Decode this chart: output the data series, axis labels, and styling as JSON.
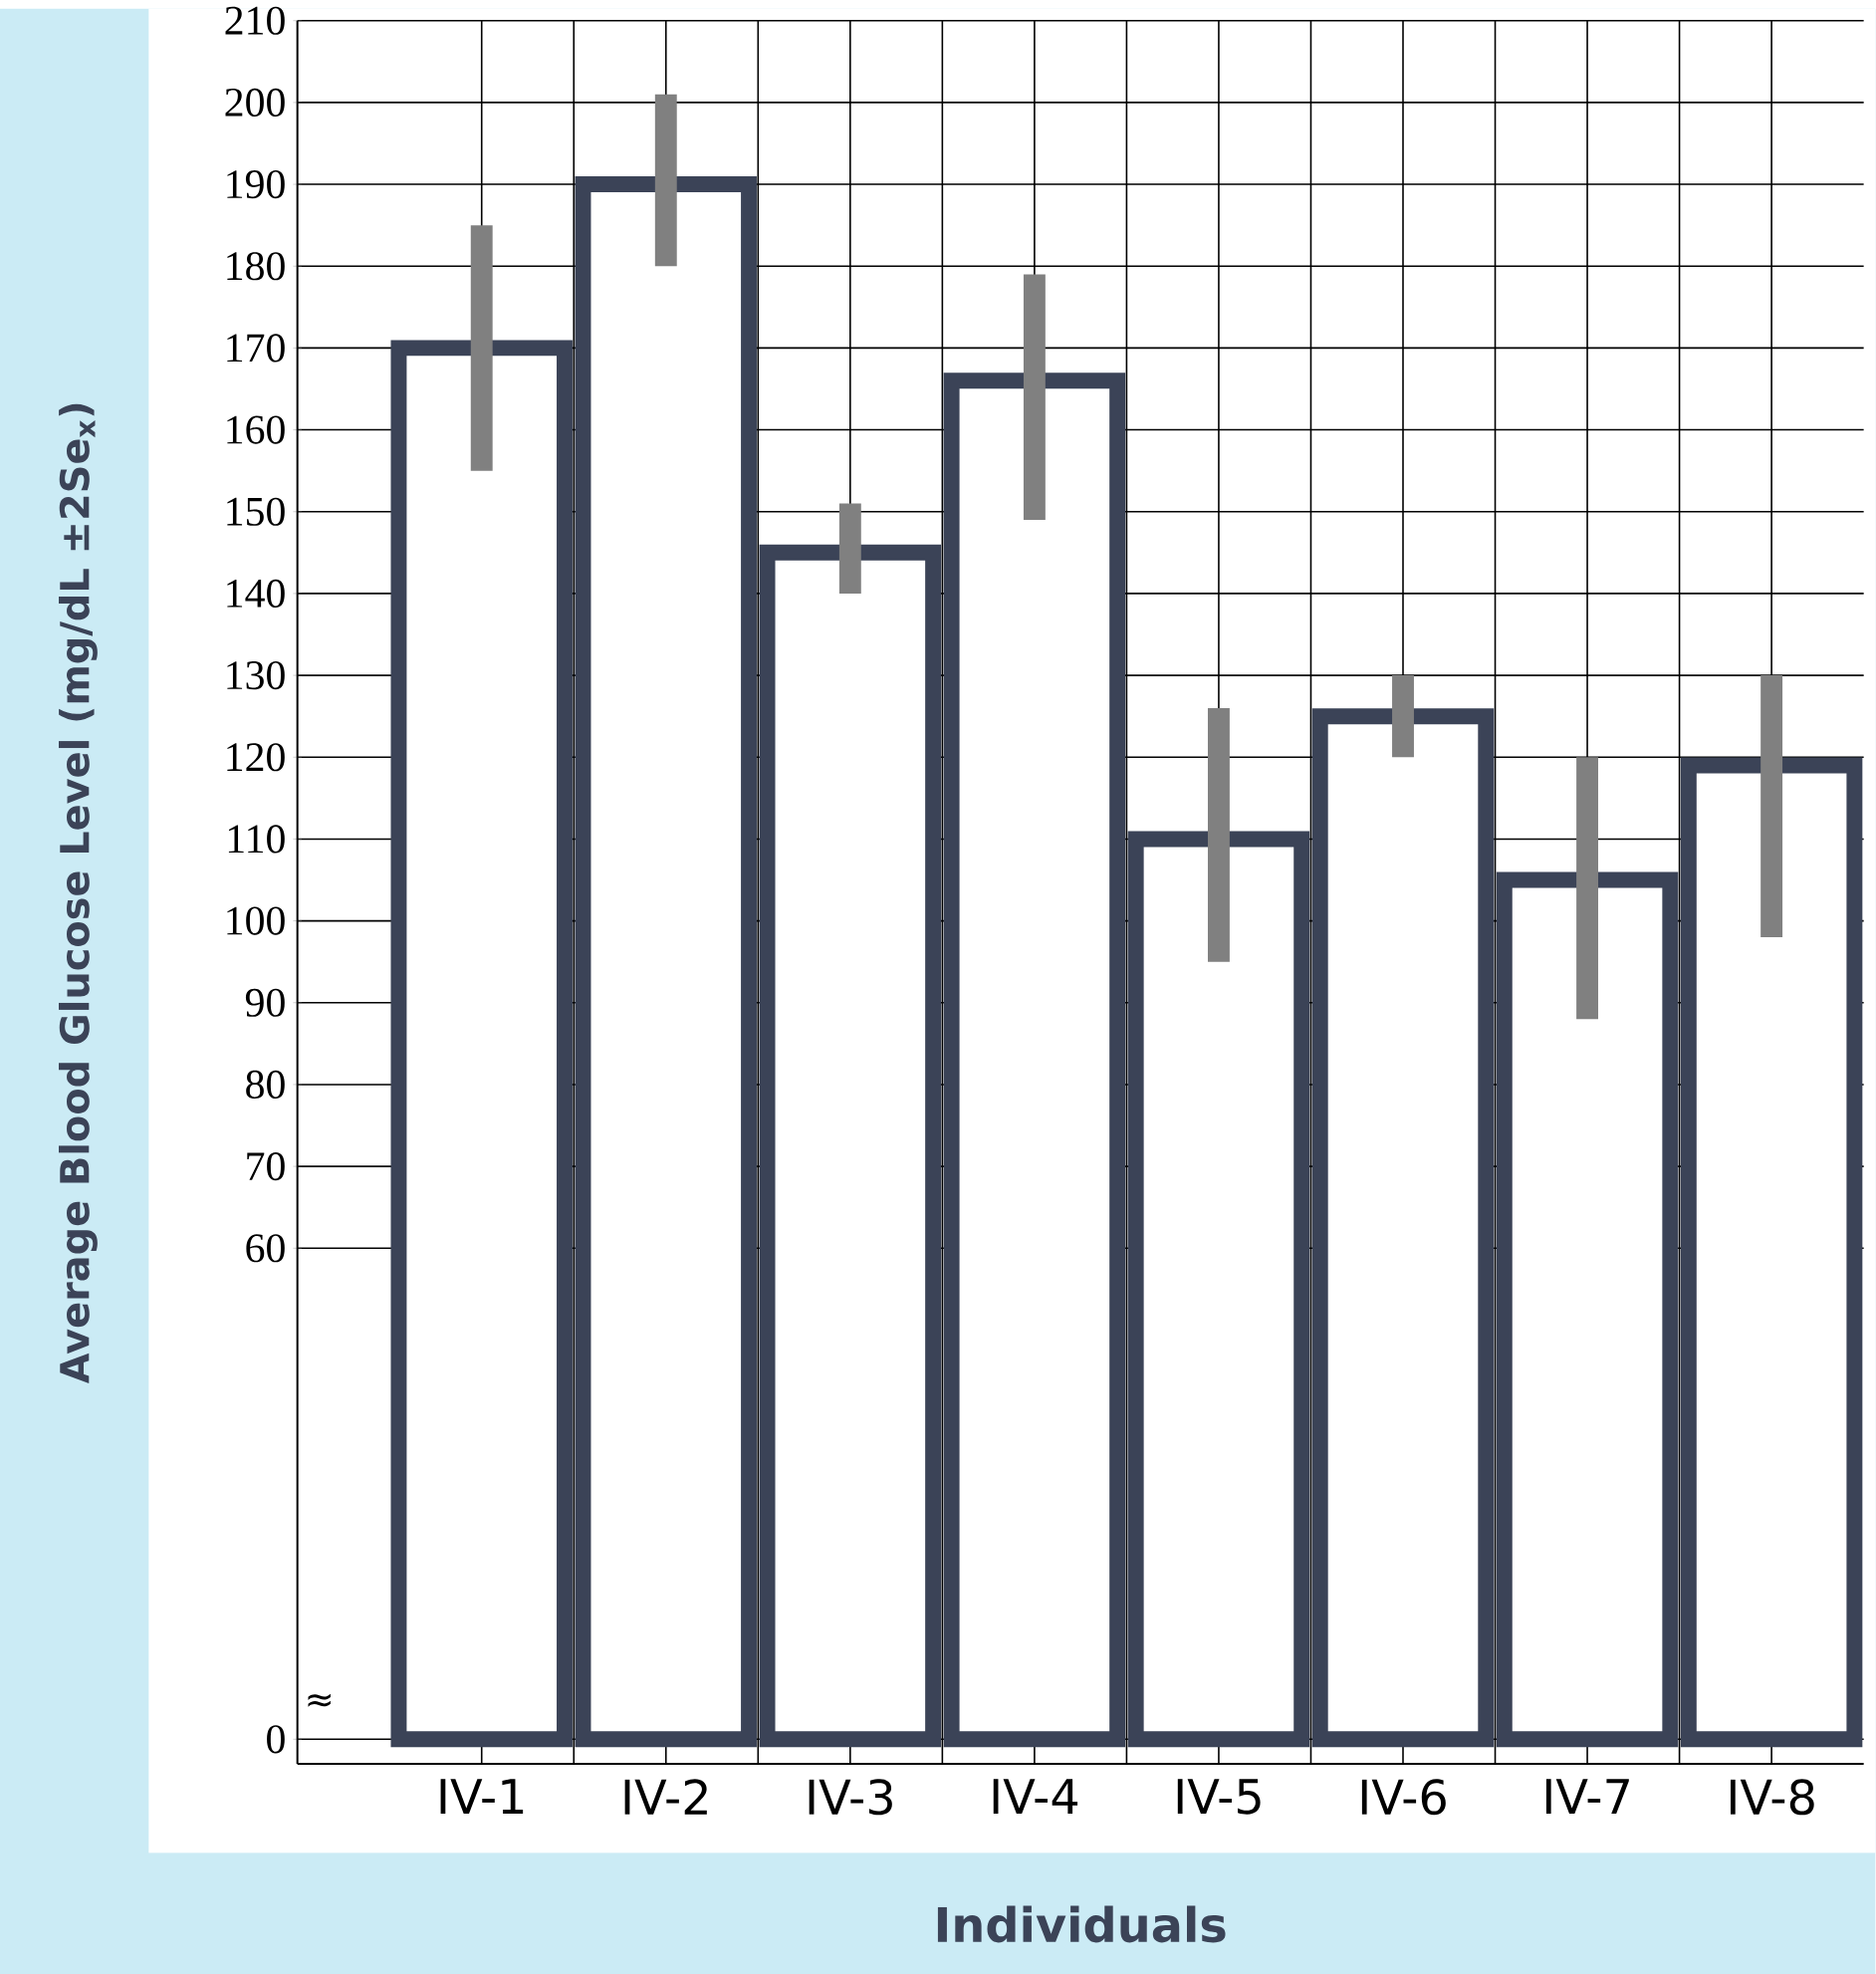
{
  "chart_data": {
    "type": "bar",
    "xlabel": "Individuals",
    "ylabel": "Average Blood Glucose Level (mg/dL ±2Se$_{x}$)",
    "categories": [
      "IV-1",
      "IV-2",
      "IV-3",
      "IV-4",
      "IV-5",
      "IV-6",
      "IV-7",
      "IV-8"
    ],
    "values": [
      170,
      190,
      145,
      166,
      110,
      125,
      105,
      119
    ],
    "errors": [
      [
        155,
        185
      ],
      [
        180,
        201
      ],
      [
        140,
        151
      ],
      [
        149,
        179
      ],
      [
        95,
        126
      ],
      [
        120,
        130
      ],
      [
        88,
        120
      ],
      [
        98,
        130
      ]
    ],
    "color": "#3b4357",
    "ylim": [
      -3,
      210
    ],
    "yticks": [
      0,
      60,
      70,
      80,
      90,
      100,
      110,
      120,
      130,
      140,
      150,
      160,
      170,
      180,
      190,
      200,
      210
    ],
    "grid": true,
    "annotations": [
      "≈"
    ]
  }
}
